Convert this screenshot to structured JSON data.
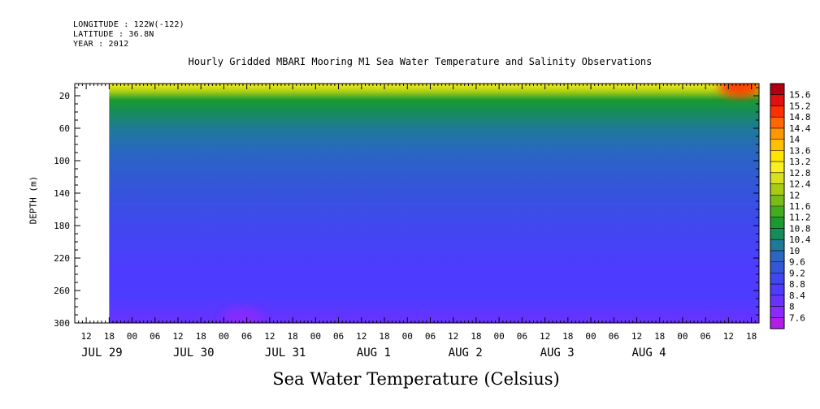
{
  "header": {
    "longitude": "LONGITUDE : 122W(-122)",
    "latitude": "LATITUDE : 36.8N",
    "year": "YEAR : 2012"
  },
  "chart_data": {
    "type": "heatmap",
    "title": "Hourly Gridded MBARI Mooring M1 Sea Water Temperature and Salinity Observations",
    "xlabel": "Sea Water Temperature (Celsius)",
    "ylabel": "DEPTH (m)",
    "y_ticks": [
      20,
      60,
      100,
      140,
      180,
      220,
      260,
      300
    ],
    "ylim": [
      300,
      5
    ],
    "x_hour_ticks": [
      "12",
      "18",
      "00",
      "06",
      "12",
      "18",
      "00",
      "06",
      "12",
      "18",
      "00",
      "06",
      "12",
      "18",
      "00",
      "06",
      "12",
      "18",
      "00",
      "06",
      "12",
      "18",
      "00",
      "06",
      "12",
      "18",
      "00",
      "06",
      "12",
      "18"
    ],
    "x_start_hour": 12,
    "x_hour_step": 6,
    "x_date_labels": [
      {
        "label": "JUL 29",
        "hour_index": 0
      },
      {
        "label": "JUL 30",
        "hour_index": 4
      },
      {
        "label": "JUL 31",
        "hour_index": 8
      },
      {
        "label": "AUG  1",
        "hour_index": 12
      },
      {
        "label": "AUG  2",
        "hour_index": 16
      },
      {
        "label": "AUG  3",
        "hour_index": 20
      },
      {
        "label": "AUG  4",
        "hour_index": 24
      }
    ],
    "x_range_hours": [
      9,
      188
    ],
    "data_start_hour": 18,
    "colorbar_levels": [
      "7.6",
      "8",
      "8.4",
      "8.8",
      "9.2",
      "9.6",
      "10",
      "10.4",
      "10.8",
      "11.2",
      "11.6",
      "12",
      "12.4",
      "12.8",
      "13.2",
      "13.6",
      "14",
      "14.4",
      "14.8",
      "15.2",
      "15.6"
    ],
    "colorbar_colors": [
      "#b01ee8",
      "#8a2aff",
      "#6a32ff",
      "#4d3cff",
      "#3f48ee",
      "#3456d8",
      "#2a66c2",
      "#1e7a96",
      "#168c5a",
      "#1a9a30",
      "#44ac20",
      "#78bc18",
      "#a8cc14",
      "#d8e020",
      "#f8f020",
      "#ffe400",
      "#ffc000",
      "#ff9800",
      "#ff6800",
      "#ff3000",
      "#e01010",
      "#b00010"
    ],
    "profile": [
      {
        "depth": 5,
        "temp": 12.8
      },
      {
        "depth": 15,
        "temp": 12.2
      },
      {
        "depth": 25,
        "temp": 11.0
      },
      {
        "depth": 40,
        "temp": 10.5
      },
      {
        "depth": 60,
        "temp": 10.1
      },
      {
        "depth": 90,
        "temp": 9.7
      },
      {
        "depth": 130,
        "temp": 9.35
      },
      {
        "depth": 180,
        "temp": 9.0
      },
      {
        "depth": 230,
        "temp": 8.7
      },
      {
        "depth": 270,
        "temp": 8.4
      },
      {
        "depth": 300,
        "temp": 8.15
      }
    ],
    "hotspots": [
      {
        "hour": 183,
        "depth": 8,
        "temp": 15.0,
        "label": "surface warm anomaly AUG 4"
      },
      {
        "hour": 53,
        "depth": 295,
        "temp": 7.6,
        "label": "deep cold anomaly JUL 31"
      }
    ]
  }
}
